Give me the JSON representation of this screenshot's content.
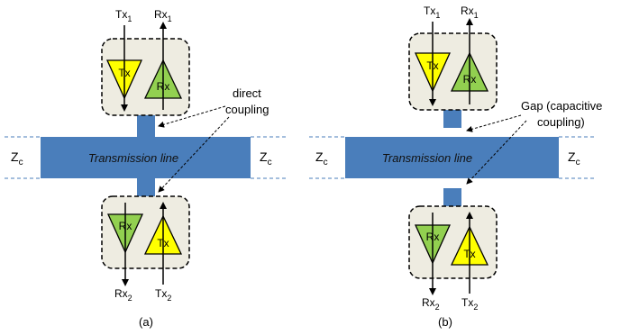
{
  "panels": [
    {
      "caption": "(a)",
      "tx_top": "Tx",
      "tx_top_sub": "1",
      "rx_top": "Rx",
      "rx_top_sub": "1",
      "rx_bottom": "Rx",
      "rx_bottom_sub": "2",
      "tx_bottom": "Tx",
      "tx_bottom_sub": "2",
      "amp_tx": "Tx",
      "amp_rx": "Rx",
      "line_label": "Transmission line",
      "z_label": "Z",
      "z_sub": "c",
      "annotation": [
        "direct",
        "coupling"
      ]
    },
    {
      "caption": "(b)",
      "tx_top": "Tx",
      "tx_top_sub": "1",
      "rx_top": "Rx",
      "rx_top_sub": "1",
      "rx_bottom": "Rx",
      "rx_bottom_sub": "2",
      "tx_bottom": "Tx",
      "tx_bottom_sub": "2",
      "amp_tx": "Tx",
      "amp_rx": "Rx",
      "line_label": "Transmission line",
      "z_label": "Z",
      "z_sub": "c",
      "annotation": [
        "Gap (capacitive",
        "coupling)"
      ]
    }
  ],
  "colors": {
    "line": "#4a7ebb",
    "dashed_line": "#4a7ebb",
    "box_fill": "#eeece1",
    "tx_fill": "#ffff00",
    "rx_fill": "#92d050"
  }
}
